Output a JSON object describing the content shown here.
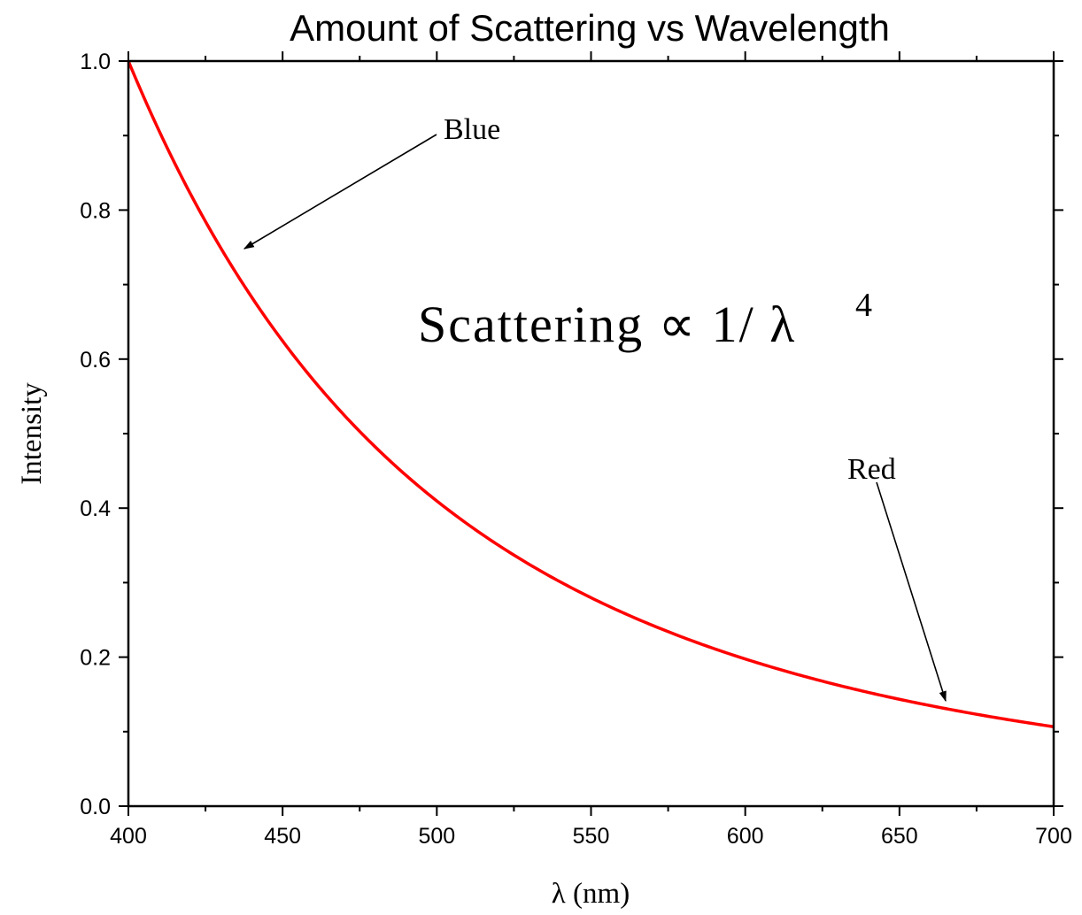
{
  "chart_data": {
    "type": "line",
    "title": "Amount of Scattering vs Wavelength",
    "xlabel": "λ (nm)",
    "ylabel": "Intensity",
    "xlim": [
      400,
      700
    ],
    "ylim": [
      0.0,
      1.0
    ],
    "x_ticks": [
      "400",
      "450",
      "500",
      "550",
      "600",
      "650",
      "700"
    ],
    "y_ticks": [
      "0.0",
      "0.2",
      "0.4",
      "0.6",
      "0.8",
      "1.0"
    ],
    "grid": false,
    "series": [
      {
        "color": "#ff0000",
        "x": [
          400,
          425,
          450,
          475,
          500,
          525,
          550,
          575,
          600,
          625,
          650,
          675,
          700
        ],
        "y": [
          1.0,
          0.786,
          0.624,
          0.503,
          0.41,
          0.337,
          0.28,
          0.234,
          0.198,
          0.168,
          0.143,
          0.123,
          0.107
        ]
      }
    ],
    "annotations": [
      {
        "text": "Blue",
        "points_to": [
          437,
          0.75
        ]
      },
      {
        "text": "Red",
        "points_to": [
          666,
          0.14
        ]
      }
    ],
    "formula": {
      "text": "Scattering ∝ 1/ λ",
      "superscript": "4"
    }
  }
}
